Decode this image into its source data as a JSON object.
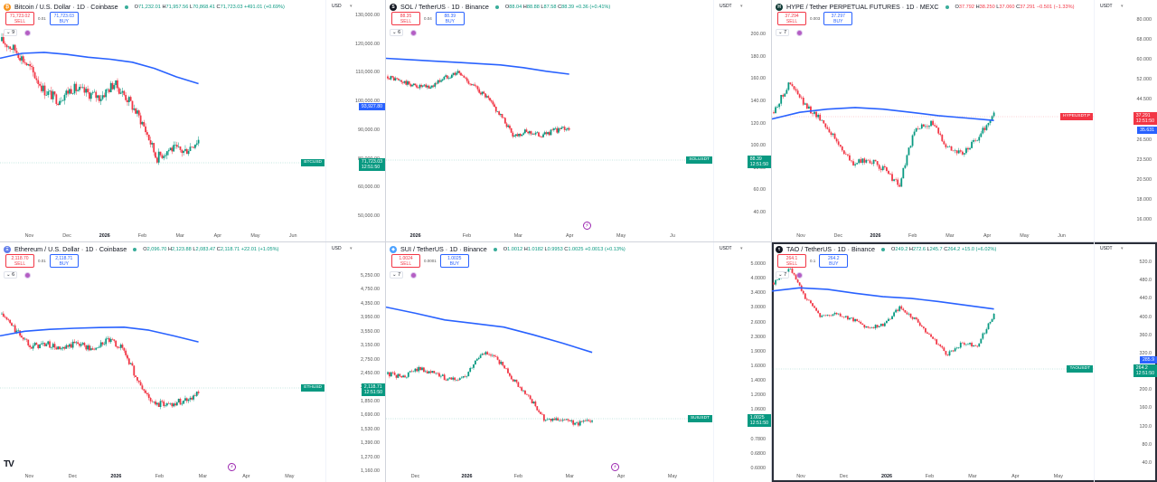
{
  "layout": {
    "rows": 2,
    "cols": 3,
    "active_panel": 5
  },
  "colors": {
    "up": "#089981",
    "down": "#f23645",
    "ma_line": "#2962ff",
    "axis_text": "#555555",
    "grid_divider": "#d1d4dc",
    "eye_icon": "#9c27b0"
  },
  "branding": {
    "logo_text": "TV"
  },
  "panels": [
    {
      "id": "btc",
      "title": "Bitcoin / U.S. Dollar · 1D · Coinbase",
      "icon_letter": "₿",
      "icon_color": "#f7931a",
      "ohlc": {
        "o": "71,232.01",
        "h": "71,957.56",
        "l": "70,868.41",
        "c": "71,723.03",
        "chg": "+491.01 (+0.69%)",
        "color": "#089981"
      },
      "sell": {
        "price": "71,723.02",
        "label": "SELL"
      },
      "buy": {
        "price": "71,723.03",
        "label": "BUY"
      },
      "spread": "0.01",
      "indicator_count": "9",
      "currency": "USD",
      "price_ticks": [
        "130,000.00",
        "120,000.00",
        "110,000.00",
        "100,000.00",
        "90,000.00",
        "80,000.00",
        "60,000.00",
        "50,000.00"
      ],
      "ma_tag": {
        "value": "93,927.80",
        "color": "#2962ff"
      },
      "last_tag": {
        "symbol": "BTCUSD",
        "value": "71,723.03",
        "countdown": "12:51:50",
        "color": "#089981"
      },
      "time_labels": [
        "Nov",
        "Dec",
        "2026",
        "Feb",
        "Mar",
        "Apr",
        "May",
        "Jun"
      ]
    },
    {
      "id": "sol",
      "title": "SOL / TetherUS · 1D · Binance",
      "icon_letter": "S",
      "icon_color": "#131722",
      "ohlc": {
        "o": "88.04",
        "h": "88.88",
        "l": "87.58",
        "c": "88.39",
        "chg": "+0.36 (+0.41%)",
        "color": "#089981"
      },
      "sell": {
        "price": "88.35",
        "label": "SELL"
      },
      "buy": {
        "price": "88.39",
        "label": "BUY"
      },
      "spread": "0.04",
      "indicator_count": "6",
      "currency": "USDT",
      "price_ticks": [
        "200.00",
        "180.00",
        "160.00",
        "140.00",
        "120.00",
        "100.00",
        "80.00",
        "60.00",
        "40.00"
      ],
      "last_tag": {
        "symbol": "SOLUSDT",
        "value": "88.39",
        "countdown": "12:51:50",
        "color": "#089981"
      },
      "time_labels": [
        "2026",
        "Feb",
        "Mar",
        "Apr",
        "May",
        "Ju"
      ]
    },
    {
      "id": "hype",
      "title": "HYPE / Tether PERPETUAL FUTURES · 1D · MEXC",
      "icon_letter": "H",
      "icon_color": "#0f3b36",
      "ohlc": {
        "o": "37.792",
        "h": "38.250",
        "l": "37.060",
        "c": "37.291",
        "chg": "−0.501 (−1.33%)",
        "color": "#f23645"
      },
      "sell": {
        "price": "37.294",
        "label": "SELL"
      },
      "buy": {
        "price": "37.297",
        "label": "BUY"
      },
      "spread": "0.003",
      "indicator_count": "7",
      "currency": "USDT",
      "price_ticks": [
        "80.000",
        "68.000",
        "60.000",
        "52.000",
        "44.500",
        "30.500",
        "26.500",
        "23.500",
        "20.500",
        "18.000",
        "16.000"
      ],
      "ma_tag": {
        "value": "35.631",
        "color": "#2962ff"
      },
      "last_tag": {
        "symbol": "HYPEUSDT.P",
        "value": "37.291",
        "countdown": "12:51:50",
        "color": "#f23645"
      },
      "time_labels": [
        "Nov",
        "Dec",
        "2026",
        "Feb",
        "Mar",
        "Apr",
        "May",
        "Jun"
      ]
    },
    {
      "id": "eth",
      "title": "Ethereum / U.S. Dollar · 1D · Coinbase",
      "icon_letter": "Ξ",
      "icon_color": "#627eea",
      "ohlc": {
        "o": "2,096.70",
        "h": "2,123.88",
        "l": "2,083.47",
        "c": "2,118.71",
        "chg": "+22.01 (+1.05%)",
        "color": "#089981"
      },
      "sell": {
        "price": "2,118.70",
        "label": "SELL"
      },
      "buy": {
        "price": "2,118.71",
        "label": "BUY"
      },
      "spread": "0.01",
      "indicator_count": "6",
      "currency": "USD",
      "price_ticks": [
        "5,250.00",
        "4,750.00",
        "4,350.00",
        "3,950.00",
        "3,550.00",
        "3,150.00",
        "2,750.00",
        "2,450.00",
        "2,250.00",
        "1,850.00",
        "1,690.00",
        "1,530.00",
        "1,390.00",
        "1,270.00",
        "1,160.00"
      ],
      "last_tag": {
        "symbol": "ETHUSD",
        "value": "2,118.71",
        "countdown": "12:51:50",
        "color": "#089981"
      },
      "time_labels": [
        "Nov",
        "Dec",
        "2026",
        "Feb",
        "Mar",
        "Apr",
        "May"
      ]
    },
    {
      "id": "sui",
      "title": "SUI / TetherUS · 1D · Binance",
      "icon_letter": "◆",
      "icon_color": "#4da2ff",
      "ohlc": {
        "o": "1.0012",
        "h": "1.0182",
        "l": "0.9953",
        "c": "1.0025",
        "chg": "+0.0013 (+0.13%)",
        "color": "#089981"
      },
      "sell": {
        "price": "1.0024",
        "label": "SELL"
      },
      "buy": {
        "price": "1.0025",
        "label": "BUY"
      },
      "spread": "0.0001",
      "indicator_count": "7",
      "currency": "USDT",
      "price_ticks": [
        "5.0000",
        "4.0000",
        "3.4000",
        "3.0000",
        "2.6000",
        "2.3000",
        "1.9000",
        "1.6000",
        "1.4000",
        "1.2000",
        "1.0600",
        "0.9000",
        "0.7800",
        "0.6800",
        "0.6000"
      ],
      "last_tag": {
        "symbol": "SUIUSDT",
        "value": "1.0025",
        "countdown": "12:51:50",
        "color": "#089981"
      },
      "time_labels": [
        "Dec",
        "2026",
        "Feb",
        "Mar",
        "Apr",
        "May"
      ]
    },
    {
      "id": "tao",
      "title": "TAO / TetherUS · 1D · Binance",
      "icon_letter": "τ",
      "icon_color": "#131722",
      "ohlc": {
        "o": "249.2",
        "h": "272.6",
        "l": "245.7",
        "c": "264.2",
        "chg": "+15.0 (+6.02%)",
        "color": "#089981"
      },
      "sell": {
        "price": "264.1",
        "label": "SELL"
      },
      "buy": {
        "price": "264.2",
        "label": "BUY"
      },
      "spread": "0.1",
      "indicator_count": "7",
      "currency": "USDT",
      "price_ticks": [
        "520.0",
        "480.0",
        "440.0",
        "400.0",
        "360.0",
        "320.0",
        "240.0",
        "200.0",
        "160.0",
        "120.0",
        "80.0",
        "40.0"
      ],
      "ma_tag": {
        "value": "285.9",
        "color": "#2962ff"
      },
      "last_tag": {
        "symbol": "TAOUSDT",
        "value": "264.2",
        "countdown": "12:51:50",
        "color": "#089981"
      },
      "time_labels": [
        "Nov",
        "Dec",
        "2026",
        "Feb",
        "Mar",
        "Apr",
        "May"
      ]
    }
  ],
  "chart_data": [
    {
      "type": "candlestick",
      "title": "Bitcoin / U.S. Dollar · 1D · Coinbase",
      "x": [
        "Nov",
        "Dec",
        "2026",
        "Feb",
        "Mar",
        "Apr",
        "May",
        "Jun"
      ],
      "ylabel": "USD",
      "ylim": [
        50000,
        130000
      ],
      "series": [
        {
          "name": "BTCUSD close (approx path)",
          "values": [
            115000,
            110000,
            101000,
            91000,
            87000,
            92000,
            90000,
            88000,
            94000,
            87000,
            78000,
            66000,
            69000,
            68000,
            72000
          ]
        },
        {
          "name": "MA (blue)",
          "values": [
            106000,
            108500,
            109000,
            108000,
            106500,
            105500,
            104000,
            101000,
            97000,
            93928
          ]
        }
      ],
      "last_price": 71723.03,
      "legend_position": "top-left"
    },
    {
      "type": "candlestick",
      "title": "SOL / TetherUS · 1D · Binance",
      "x": [
        "2026",
        "Feb",
        "Mar",
        "Apr",
        "May",
        "Ju"
      ],
      "ylabel": "USDT",
      "ylim": [
        40,
        210
      ],
      "series": [
        {
          "name": "SOLUSDT close (approx path)",
          "values": [
            142,
            135,
            130,
            128,
            140,
            148,
            132,
            118,
            100,
            82,
            85,
            82,
            86,
            88
          ]
        },
        {
          "name": "MA (blue)",
          "values": [
            168,
            166,
            164,
            162,
            160,
            158,
            154,
            149,
            145
          ]
        }
      ],
      "last_price": 88.39
    },
    {
      "type": "candlestick",
      "title": "HYPE / Tether PERPETUAL FUTURES · 1D · MEXC",
      "x": [
        "Nov",
        "Dec",
        "2026",
        "Feb",
        "Mar",
        "Apr",
        "May",
        "Jun"
      ],
      "ylabel": "USDT",
      "ylim": [
        16,
        80
      ],
      "series": [
        {
          "name": "HYPEUSDT.P close (approx path)",
          "values": [
            38,
            48,
            40,
            36,
            30,
            25,
            26,
            24,
            21,
            33,
            35,
            29,
            27,
            31,
            37.3
          ]
        },
        {
          "name": "MA (blue)",
          "values": [
            36,
            38,
            39,
            39.5,
            39,
            38,
            37,
            36.3,
            35.6
          ]
        }
      ],
      "last_price": 37.291
    },
    {
      "type": "candlestick",
      "title": "Ethereum / U.S. Dollar · 1D · Coinbase",
      "x": [
        "Nov",
        "Dec",
        "2026",
        "Feb",
        "Mar",
        "Apr",
        "May"
      ],
      "ylabel": "USD",
      "ylim": [
        1160,
        5250
      ],
      "series": [
        {
          "name": "ETHUSD close (approx path)",
          "values": [
            3900,
            3400,
            3050,
            3100,
            2950,
            3150,
            2950,
            3200,
            3000,
            2300,
            1950,
            1950,
            2000,
            2118
          ]
        },
        {
          "name": "MA (blue)",
          "values": [
            3300,
            3420,
            3470,
            3500,
            3520,
            3530,
            3450,
            3300,
            3150
          ]
        }
      ],
      "last_price": 2118.71
    },
    {
      "type": "candlestick",
      "title": "SUI / TetherUS · 1D · Binance",
      "x": [
        "Dec",
        "2026",
        "Feb",
        "Mar",
        "Apr",
        "May"
      ],
      "ylabel": "USDT",
      "ylim": [
        0.6,
        5.0
      ],
      "series": [
        {
          "name": "SUIUSDT close (approx path)",
          "values": [
            1.6,
            1.55,
            1.7,
            1.6,
            1.5,
            1.55,
            2.0,
            1.85,
            1.5,
            1.25,
            0.98,
            1.0,
            0.95,
            1.0
          ]
        },
        {
          "name": "MA (blue)",
          "values": [
            3.2,
            3.0,
            2.8,
            2.7,
            2.6,
            2.4,
            2.2,
            2.0
          ]
        }
      ],
      "last_price": 1.0025
    },
    {
      "type": "candlestick",
      "title": "TAO / TetherUS · 1D · Binance",
      "x": [
        "Nov",
        "Dec",
        "2026",
        "Feb",
        "Mar",
        "Apr",
        "May"
      ],
      "ylabel": "USDT",
      "ylim": [
        40,
        520
      ],
      "series": [
        {
          "name": "TAOUSDT close (approx path)",
          "values": [
            400,
            480,
            330,
            260,
            270,
            250,
            225,
            235,
            290,
            250,
            200,
            160,
            185,
            180,
            264
          ]
        },
        {
          "name": "MA (blue)",
          "values": [
            360,
            375,
            368,
            350,
            335,
            328,
            315,
            300,
            286
          ]
        }
      ],
      "last_price": 264.2
    }
  ]
}
